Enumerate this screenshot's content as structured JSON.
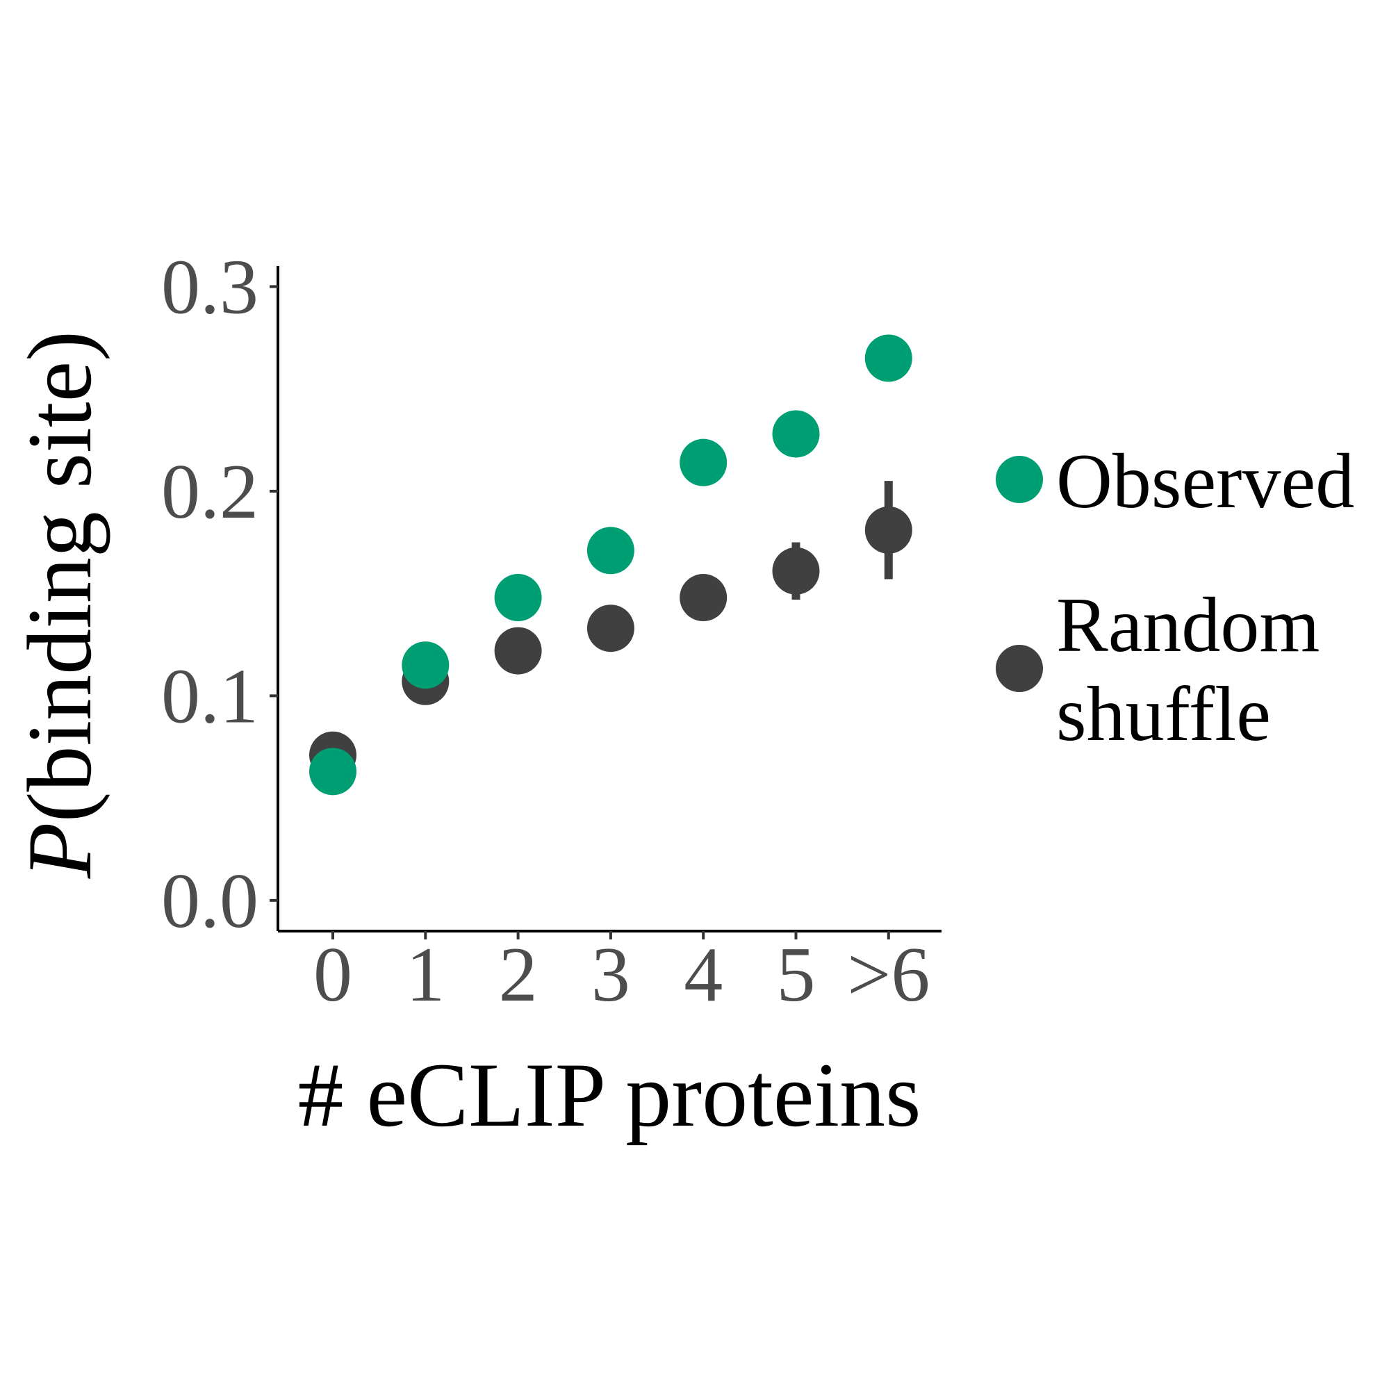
{
  "chart_data": {
    "type": "scatter",
    "xlabel": "# eCLIP proteins",
    "ylabel_italic": "P",
    "ylabel_rest": "(binding site)",
    "categories": [
      "0",
      "1",
      "2",
      "3",
      "4",
      "5",
      ">6"
    ],
    "ylim": [
      -0.015,
      0.31
    ],
    "y_ticks": [
      0.0,
      0.1,
      0.2,
      0.3
    ],
    "y_tick_labels": [
      "0.0",
      "0.1",
      "0.2",
      "0.3"
    ],
    "grid": false,
    "legend_position": "right",
    "series": [
      {
        "name": "Random shuffle",
        "color": "#404040",
        "values": [
          0.071,
          0.107,
          0.122,
          0.133,
          0.148,
          0.161,
          0.181
        ],
        "error_low": [
          0.071,
          0.107,
          0.122,
          0.133,
          0.148,
          0.147,
          0.157
        ],
        "error_high": [
          0.071,
          0.107,
          0.122,
          0.133,
          0.148,
          0.175,
          0.205
        ]
      },
      {
        "name": "Observed",
        "color": "#009E73",
        "values": [
          0.063,
          0.115,
          0.148,
          0.171,
          0.214,
          0.228,
          0.265
        ]
      }
    ]
  },
  "legend": {
    "observed_label": "Observed",
    "random_label_line1": "Random",
    "random_label_line2": "shuffle"
  }
}
